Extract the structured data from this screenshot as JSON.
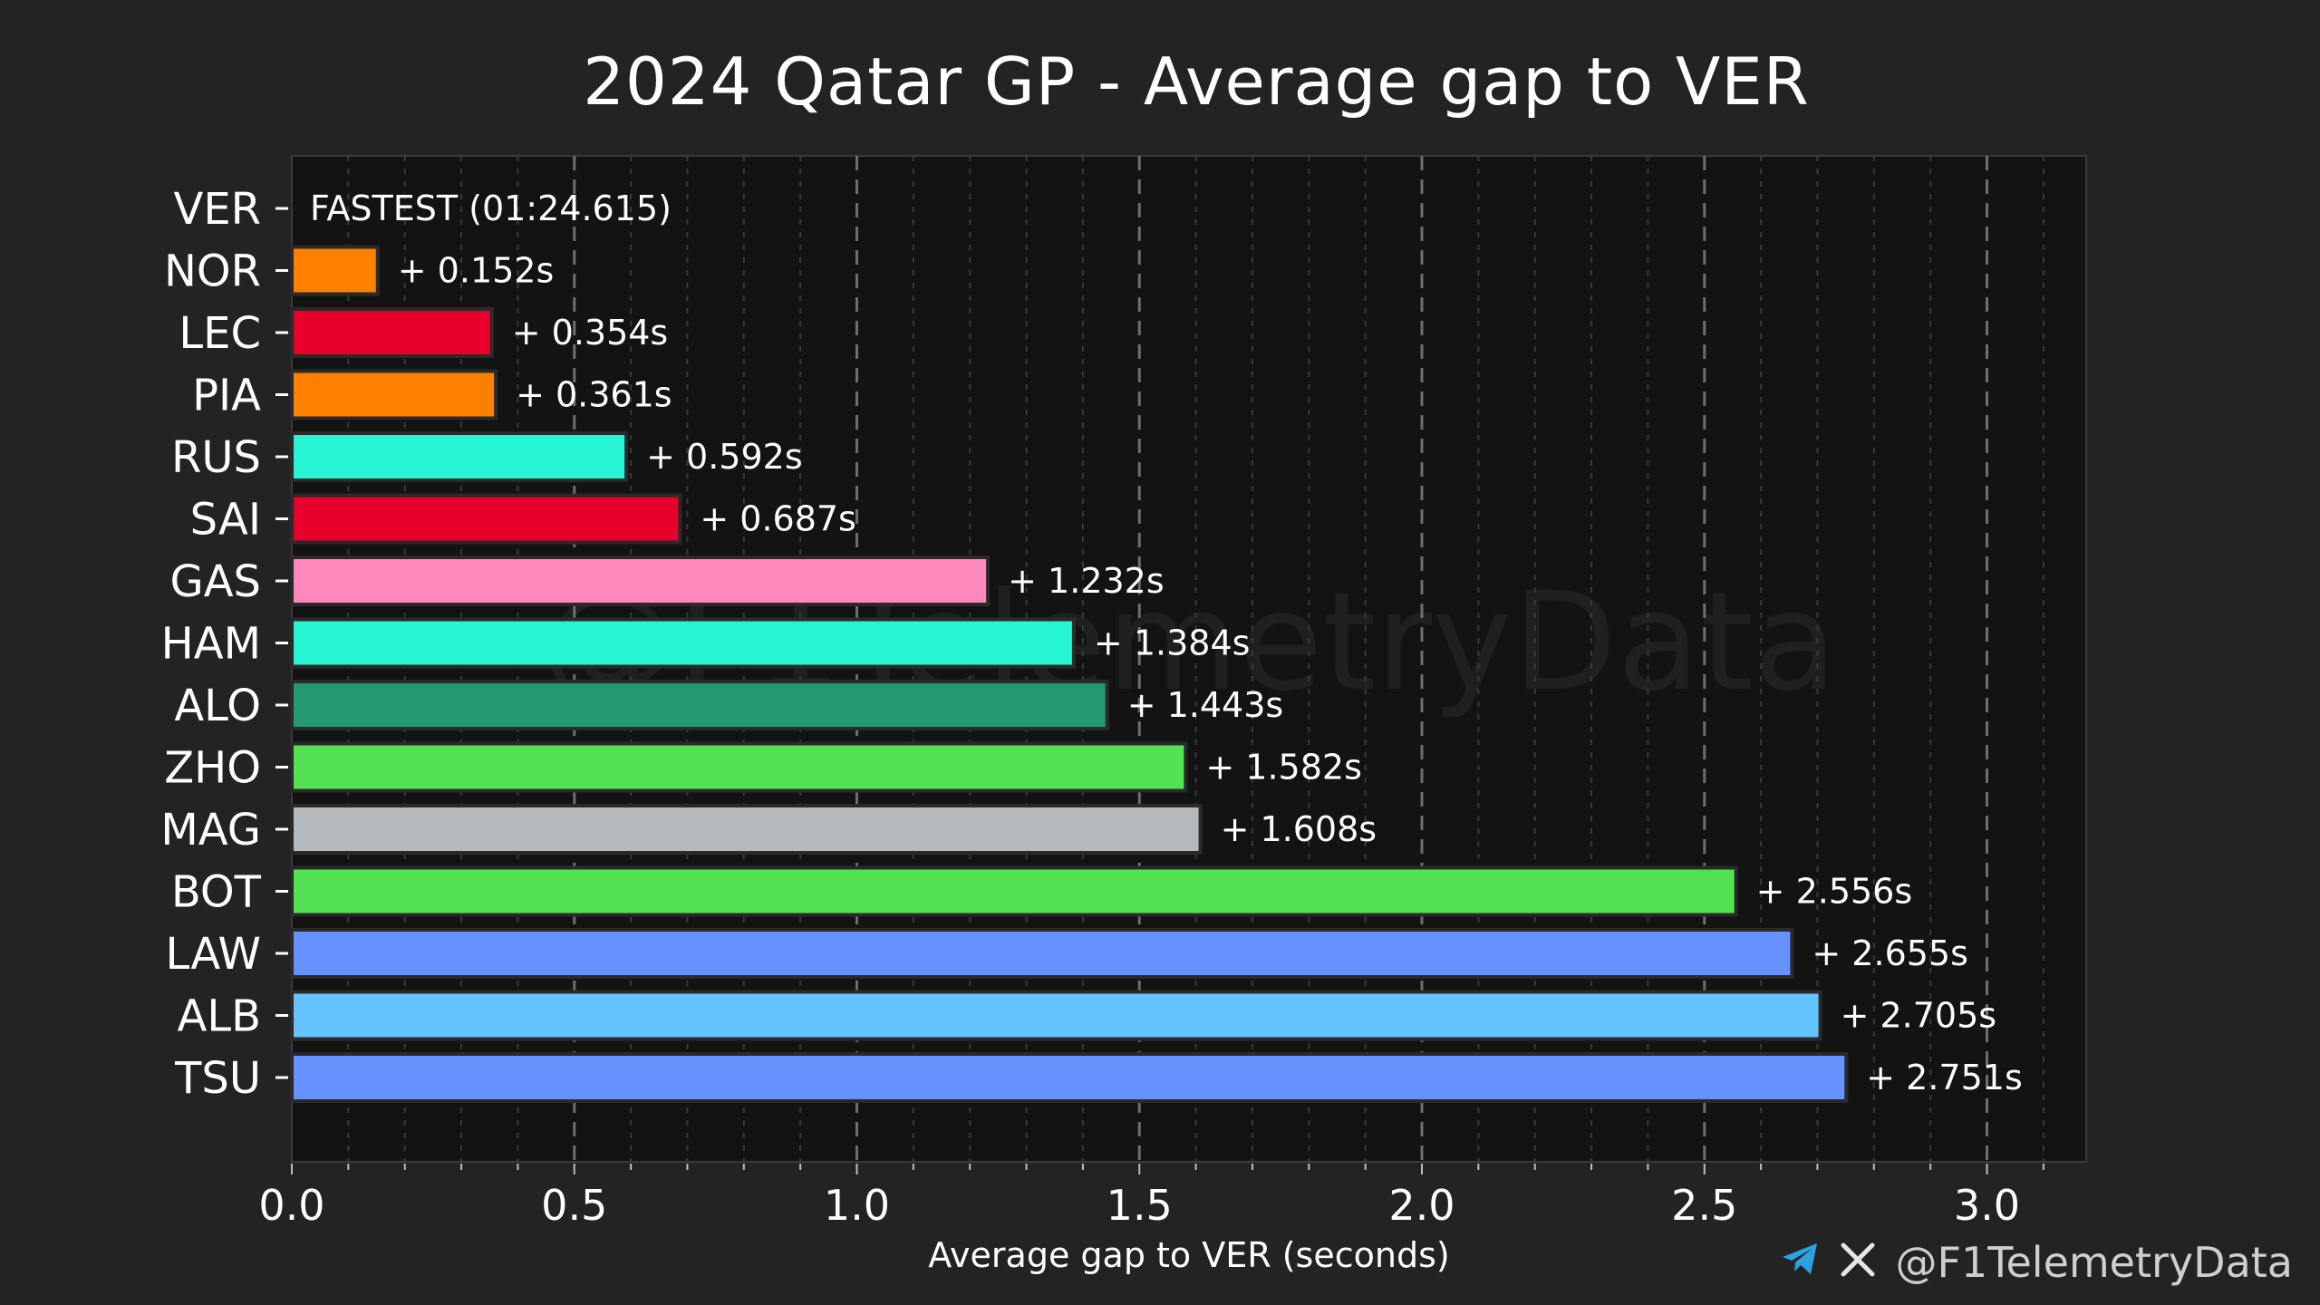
{
  "chart_data": {
    "type": "bar",
    "orientation": "horizontal",
    "title": "2024 Qatar GP - Average gap to VER",
    "xlabel": "Average gap to VER (seconds)",
    "ylabel": "",
    "xlim": [
      0,
      3.18
    ],
    "xticks": [
      "0.0",
      "0.5",
      "1.0",
      "1.5",
      "2.0",
      "2.5",
      "3.0"
    ],
    "xtick_values": [
      0,
      0.5,
      1.0,
      1.5,
      2.0,
      2.5,
      3.0
    ],
    "grid": true,
    "watermark": "@F1TelemetryData",
    "categories": [
      "VER",
      "NOR",
      "LEC",
      "PIA",
      "RUS",
      "SAI",
      "GAS",
      "HAM",
      "ALO",
      "ZHO",
      "MAG",
      "BOT",
      "LAW",
      "ALB",
      "TSU"
    ],
    "values": [
      0,
      0.152,
      0.354,
      0.361,
      0.592,
      0.687,
      1.232,
      1.384,
      1.443,
      1.582,
      1.608,
      2.556,
      2.655,
      2.705,
      2.751
    ],
    "labels": [
      "FASTEST (01:24.615)",
      "+ 0.152s",
      "+ 0.354s",
      "+ 0.361s",
      "+ 0.592s",
      "+ 0.687s",
      "+ 1.232s",
      "+ 1.384s",
      "+ 1.443s",
      "+ 1.582s",
      "+ 1.608s",
      "+ 2.556s",
      "+ 2.655s",
      "+ 2.705s",
      "+ 2.751s"
    ],
    "colors": [
      "#3671c6",
      "#ff8000",
      "#e8002d",
      "#ff8000",
      "#27f4d2",
      "#e8002d",
      "#ff87bc",
      "#27f4d2",
      "#229971",
      "#52e252",
      "#b6babd",
      "#52e252",
      "#6692ff",
      "#64c4ff",
      "#6692ff"
    ]
  },
  "footer": {
    "telegram_icon": "telegram-icon",
    "x_icon": "x-icon",
    "handle": "@F1TelemetryData",
    "accent": "#2aa3e0"
  }
}
